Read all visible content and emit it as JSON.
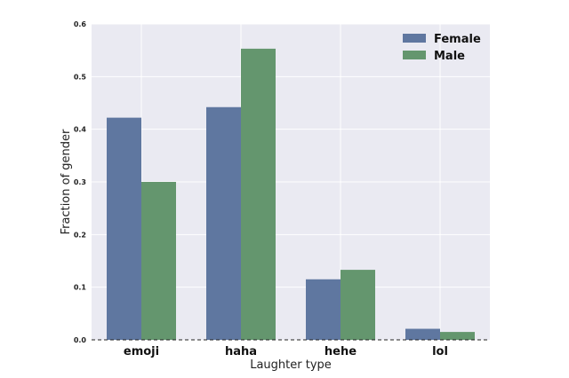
{
  "chart_data": {
    "type": "bar",
    "categories": [
      "emoji",
      "haha",
      "hehe",
      "lol"
    ],
    "series": [
      {
        "name": "Female",
        "values": [
          0.422,
          0.442,
          0.115,
          0.021
        ]
      },
      {
        "name": "Male",
        "values": [
          0.3,
          0.553,
          0.133,
          0.015
        ]
      }
    ],
    "title": "",
    "xlabel": "Laughter type",
    "ylabel": "Fraction of gender",
    "ylim": [
      0,
      0.6
    ],
    "yticks": [
      "0.0",
      "0.1",
      "0.2",
      "0.3",
      "0.4",
      "0.5",
      "0.6"
    ],
    "grid": true,
    "legend": "top-right",
    "colors": {
      "Female": "#5f77a0",
      "Male": "#64966e",
      "background": "#eaeaf2",
      "grid": "#ffffff"
    }
  }
}
